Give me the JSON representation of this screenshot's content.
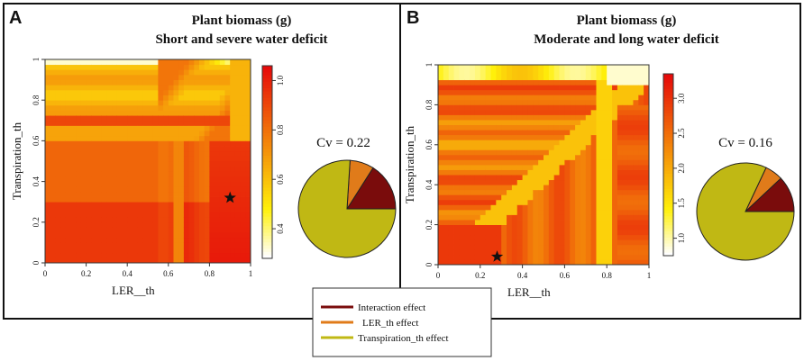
{
  "figure": {
    "panels": [
      {
        "letter": "A",
        "title_line1": "Plant biomass (g)",
        "title_line2": "Short and severe water deficit",
        "cv_label": "Cv = 0.22"
      },
      {
        "letter": "B",
        "title_line1": "Plant biomass (g)",
        "title_line2": "Moderate and long water deficit",
        "cv_label": "Cv = 0.16"
      }
    ],
    "legend": {
      "items": [
        {
          "label": "Interaction effect",
          "color": "#7a0c0c"
        },
        {
          "label": "LER_th effect",
          "color": "#e07b1a"
        },
        {
          "label": "Transpiration_th effect",
          "color": "#c0b814"
        }
      ]
    }
  },
  "chart_data": [
    {
      "type": "heatmap",
      "panel": "A",
      "title": "Plant biomass (g) — Short and severe water deficit",
      "xlabel": "LER__th",
      "ylabel": "Transpiration_th",
      "xlim": [
        0,
        1
      ],
      "ylim": [
        0,
        1
      ],
      "xticks": [
        0,
        0.2,
        0.4,
        0.6,
        0.8,
        1
      ],
      "xtick_labels": [
        "0",
        "0.2",
        "0.4",
        "0.6",
        "0.8",
        "1"
      ],
      "yticks": [
        0,
        0.2,
        0.4,
        0.6,
        0.8,
        1
      ],
      "ytick_labels": [
        "0",
        "0.2",
        "0.4",
        "0.6",
        "0.8",
        "1"
      ],
      "colorbar": {
        "range": [
          0.28,
          1.06
        ],
        "ticks": [
          0.4,
          0.6,
          0.8,
          1.0
        ],
        "tick_labels": [
          "0.4",
          "0.6",
          "0.8",
          "1.0"
        ]
      },
      "optimum_star": {
        "x": 0.9,
        "y": 0.32
      },
      "variance_decomposition": {
        "type": "pie",
        "categories": [
          "Transpiration_th effect",
          "LER_th effect",
          "Interaction effect"
        ],
        "values": [
          0.76,
          0.08,
          0.16
        ]
      }
    },
    {
      "type": "heatmap",
      "panel": "B",
      "title": "Plant biomass (g) — Moderate and long water deficit",
      "xlabel": "LER__th",
      "ylabel": "Transpiration_th",
      "xlim": [
        0,
        1
      ],
      "ylim": [
        0,
        1
      ],
      "xticks": [
        0,
        0.2,
        0.4,
        0.6,
        0.8,
        1
      ],
      "xtick_labels": [
        "0",
        "0.2",
        "0.4",
        "0.6",
        "0.8",
        "1"
      ],
      "yticks": [
        0,
        0.2,
        0.4,
        0.6,
        0.8,
        1
      ],
      "ytick_labels": [
        "0",
        "0.2",
        "0.4",
        "0.6",
        "0.8",
        "1"
      ],
      "colorbar": {
        "range": [
          0.75,
          3.35
        ],
        "ticks": [
          1.0,
          1.5,
          2.0,
          2.5,
          3.0
        ],
        "tick_labels": [
          "1.0",
          "1.5",
          "2.0",
          "2.5",
          "3.0"
        ]
      },
      "optimum_star": {
        "x": 0.28,
        "y": 0.04
      },
      "variance_decomposition": {
        "type": "pie",
        "categories": [
          "Transpiration_th effect",
          "LER_th effect",
          "Interaction effect"
        ],
        "values": [
          0.82,
          0.06,
          0.12
        ]
      }
    }
  ]
}
